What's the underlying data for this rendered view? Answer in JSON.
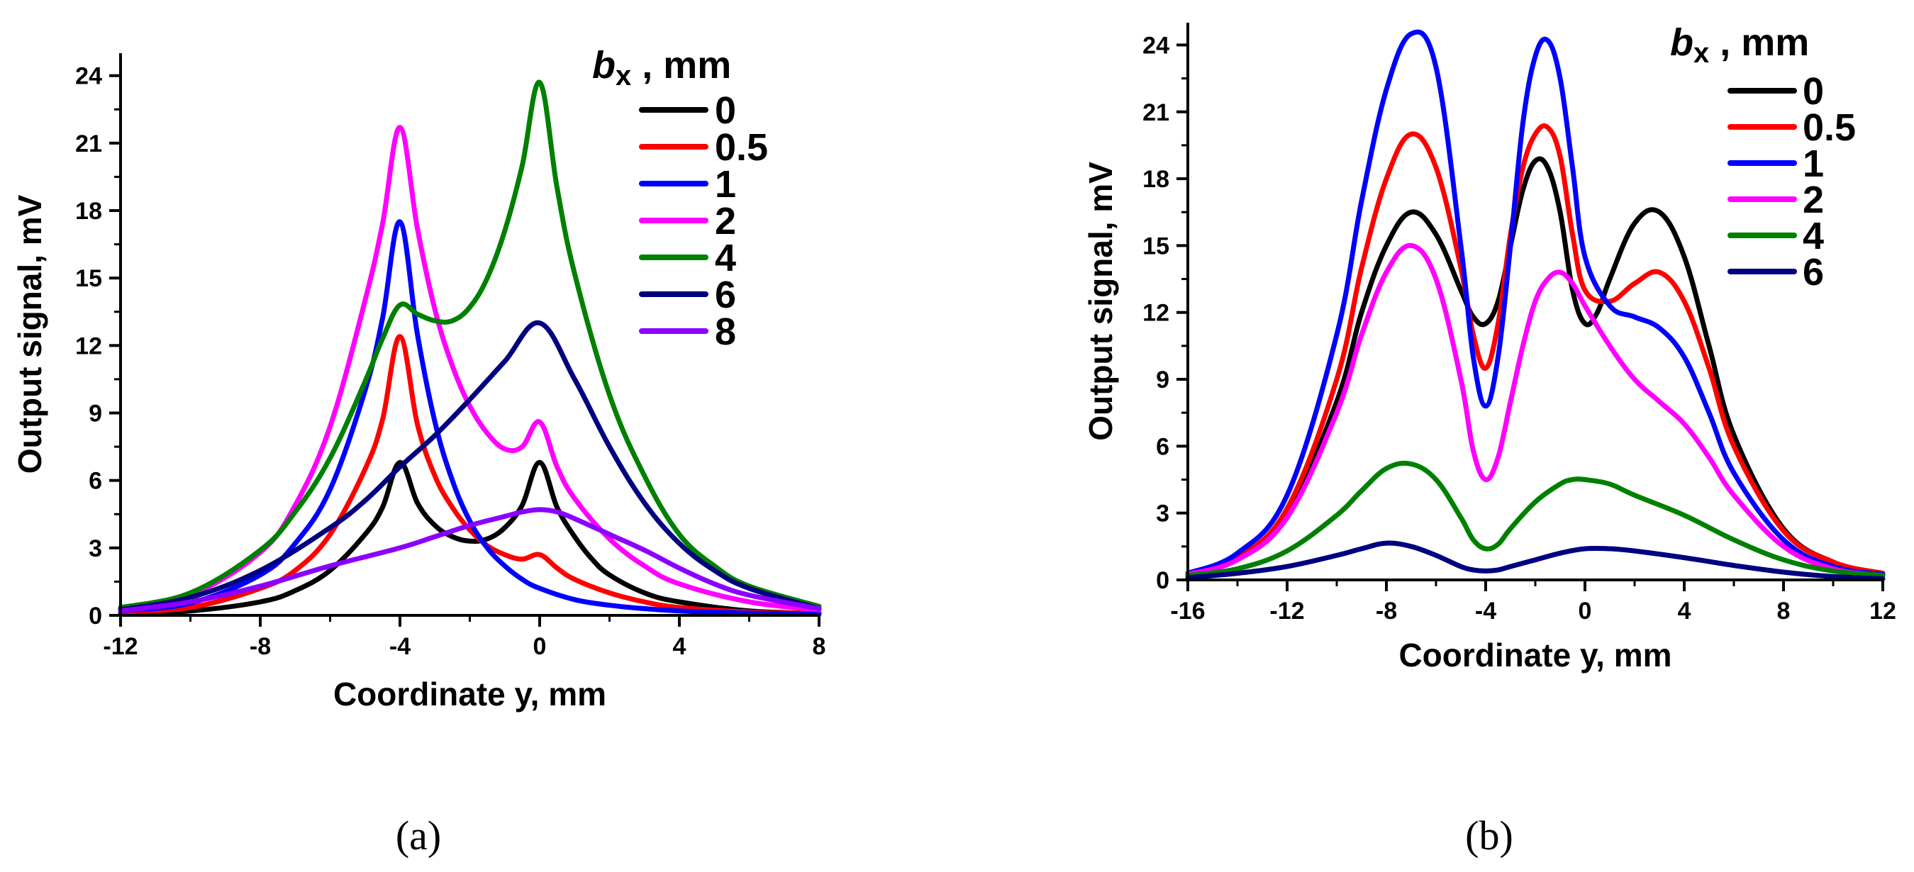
{
  "chart_data": [
    {
      "type": "line",
      "panel_label": "(a)",
      "xlabel": "Coordinate y, mm",
      "ylabel": "Output signal, mV",
      "xlim": [
        -12,
        8
      ],
      "ylim": [
        0,
        25
      ],
      "xticks": [
        -12,
        -8,
        -4,
        0,
        4,
        8
      ],
      "yticks": [
        0,
        3,
        6,
        9,
        12,
        15,
        18,
        21,
        24
      ],
      "legend_title_var": "b",
      "legend_title_sub": "x",
      "legend_title_unit": " , mm",
      "legend_position": "top-right",
      "series": [
        {
          "name": "0",
          "color": "#000000",
          "x": [
            -12,
            -10,
            -8,
            -7,
            -6,
            -5,
            -4.5,
            -4,
            -3.5,
            -3,
            -2.5,
            -2,
            -1.5,
            -1,
            -0.5,
            0,
            0.5,
            1,
            1.5,
            2,
            3,
            4,
            6,
            8
          ],
          "y": [
            0.1,
            0.2,
            0.6,
            1.1,
            2.0,
            3.6,
            4.8,
            6.8,
            5.0,
            4.0,
            3.5,
            3.3,
            3.4,
            3.9,
            4.9,
            6.8,
            4.8,
            3.5,
            2.5,
            1.8,
            1.0,
            0.6,
            0.2,
            0.1
          ]
        },
        {
          "name": "0.5",
          "color": "#ff0000",
          "x": [
            -12,
            -10,
            -8,
            -7,
            -6,
            -5,
            -4.5,
            -4,
            -3.5,
            -3,
            -2.5,
            -2,
            -1.5,
            -1,
            -0.5,
            0,
            0.5,
            1,
            2,
            3,
            4,
            6,
            8
          ],
          "y": [
            0.15,
            0.35,
            1.2,
            2.0,
            3.6,
            6.5,
            8.7,
            12.4,
            8.5,
            6.2,
            4.8,
            3.8,
            3.1,
            2.7,
            2.5,
            2.7,
            2.1,
            1.6,
            1.0,
            0.6,
            0.35,
            0.15,
            0.1
          ]
        },
        {
          "name": "1",
          "color": "#0000ff",
          "x": [
            -12,
            -10,
            -8,
            -7,
            -6,
            -5,
            -4.5,
            -4,
            -3.5,
            -3,
            -2.5,
            -2,
            -1.5,
            -1,
            -0.5,
            0,
            1,
            2,
            3,
            4,
            6,
            8
          ],
          "y": [
            0.2,
            0.55,
            1.8,
            3.2,
            5.6,
            10.0,
            13.2,
            17.5,
            12.5,
            8.6,
            6.0,
            4.2,
            3.0,
            2.2,
            1.6,
            1.2,
            0.7,
            0.45,
            0.3,
            0.2,
            0.1,
            0.05
          ]
        },
        {
          "name": "2",
          "color": "#ff00ff",
          "x": [
            -12,
            -10,
            -8,
            -7,
            -6,
            -5,
            -4.5,
            -4,
            -3.5,
            -3,
            -2.5,
            -2,
            -1.5,
            -1,
            -0.5,
            0,
            0.5,
            1,
            2,
            3,
            4,
            6,
            8
          ],
          "y": [
            0.3,
            0.9,
            2.8,
            4.9,
            8.4,
            14.0,
            17.4,
            21.7,
            17.2,
            13.6,
            11.1,
            9.3,
            8.1,
            7.4,
            7.5,
            8.6,
            6.6,
            5.2,
            3.4,
            2.2,
            1.4,
            0.6,
            0.25
          ]
        },
        {
          "name": "4",
          "color": "#008000",
          "x": [
            -12,
            -10,
            -8,
            -7,
            -6,
            -5,
            -4.5,
            -4,
            -3.5,
            -3,
            -2.5,
            -2,
            -1.5,
            -1,
            -0.5,
            0,
            0.5,
            1,
            2,
            3,
            4,
            5,
            6,
            8
          ],
          "y": [
            0.35,
            1.0,
            2.9,
            4.6,
            7.0,
            10.4,
            12.3,
            13.8,
            13.4,
            13.1,
            13.1,
            13.7,
            15.0,
            17.1,
            20.0,
            23.7,
            19.0,
            15.2,
            9.8,
            6.2,
            3.6,
            2.2,
            1.3,
            0.4
          ]
        },
        {
          "name": "6",
          "color": "#000080",
          "x": [
            -12,
            -10,
            -8,
            -6,
            -5,
            -4,
            -3,
            -2,
            -1,
            0,
            1,
            2,
            3,
            4,
            5,
            6,
            8
          ],
          "y": [
            0.25,
            0.8,
            2.0,
            3.9,
            5.1,
            6.6,
            8.0,
            9.6,
            11.3,
            13.0,
            10.5,
            7.5,
            5.0,
            3.2,
            2.0,
            1.2,
            0.3
          ]
        },
        {
          "name": "8",
          "color": "#8b00ff",
          "x": [
            -12,
            -10,
            -8,
            -6,
            -4,
            -3,
            -2,
            -1,
            -0.5,
            0,
            0.5,
            1,
            2,
            3,
            4,
            5,
            6,
            8
          ],
          "y": [
            0.2,
            0.6,
            1.3,
            2.2,
            3.0,
            3.5,
            4.0,
            4.4,
            4.6,
            4.7,
            4.6,
            4.3,
            3.6,
            2.9,
            2.1,
            1.4,
            0.9,
            0.3
          ]
        }
      ]
    },
    {
      "type": "line",
      "panel_label": "(b)",
      "xlabel": "Coordinate y, mm",
      "ylabel": "Output signal, mV",
      "xlim": [
        -16,
        12
      ],
      "ylim": [
        0,
        25
      ],
      "xticks": [
        -16,
        -12,
        -8,
        -4,
        0,
        4,
        8,
        12
      ],
      "yticks": [
        0,
        3,
        6,
        9,
        12,
        15,
        18,
        21,
        24
      ],
      "legend_title_var": "b",
      "legend_title_sub": "x",
      "legend_title_unit": " , mm",
      "legend_position": "top-right",
      "series": [
        {
          "name": "0",
          "color": "#000000",
          "x": [
            -16,
            -14,
            -12,
            -10,
            -9,
            -8,
            -7,
            -6,
            -5,
            -4.5,
            -4,
            -3.5,
            -3,
            -2.5,
            -2,
            -1.5,
            -1,
            -0.5,
            0,
            0.5,
            1,
            2,
            3,
            4,
            5,
            6,
            8,
            10,
            12
          ],
          "y": [
            0.3,
            1.0,
            3.0,
            8.0,
            12.0,
            15.0,
            16.5,
            15.5,
            13.0,
            11.8,
            11.5,
            12.5,
            15.0,
            17.5,
            18.8,
            18.5,
            16.5,
            13.0,
            11.5,
            12.0,
            13.5,
            16.0,
            16.5,
            14.5,
            10.5,
            6.5,
            2.3,
            0.8,
            0.3
          ]
        },
        {
          "name": "0.5",
          "color": "#ff0000",
          "x": [
            -16,
            -14,
            -12,
            -10,
            -9,
            -8,
            -7,
            -6,
            -5,
            -4.5,
            -4,
            -3.5,
            -3,
            -2.5,
            -2,
            -1.5,
            -1,
            -0.5,
            0,
            1,
            2,
            3,
            4,
            5,
            6,
            8,
            10,
            12
          ],
          "y": [
            0.3,
            1.0,
            3.2,
            9.0,
            14.0,
            18.0,
            20.0,
            18.5,
            14.0,
            11.0,
            9.5,
            11.5,
            15.5,
            18.5,
            20.0,
            20.3,
            19.0,
            15.5,
            13.0,
            12.5,
            13.3,
            13.8,
            12.5,
            9.5,
            6.0,
            2.2,
            0.8,
            0.3
          ]
        },
        {
          "name": "1",
          "color": "#0000ff",
          "x": [
            -16,
            -14,
            -12,
            -10,
            -9,
            -8,
            -7,
            -6,
            -5,
            -4.5,
            -4,
            -3.5,
            -3,
            -2.5,
            -2,
            -1.5,
            -1,
            -0.5,
            0,
            1,
            2,
            3,
            4,
            5,
            6,
            8,
            10,
            12
          ],
          "y": [
            0.3,
            1.2,
            3.8,
            11.0,
            17.0,
            22.0,
            24.5,
            23.0,
            15.0,
            10.0,
            7.8,
            10.0,
            15.0,
            20.5,
            23.5,
            24.2,
            22.5,
            18.5,
            14.5,
            12.3,
            11.8,
            11.3,
            10.0,
            7.5,
            4.8,
            1.8,
            0.6,
            0.25
          ]
        },
        {
          "name": "2",
          "color": "#ff00ff",
          "x": [
            -16,
            -14,
            -12,
            -10,
            -9,
            -8,
            -7,
            -6,
            -5,
            -4.5,
            -4,
            -3.5,
            -3,
            -2.5,
            -2,
            -1.5,
            -1,
            -0.5,
            0,
            1,
            2,
            3,
            4,
            5,
            6,
            8,
            10,
            12
          ],
          "y": [
            0.25,
            0.9,
            2.8,
            7.5,
            11.0,
            13.8,
            15.0,
            13.5,
            9.0,
            5.8,
            4.5,
            5.5,
            8.0,
            10.5,
            12.5,
            13.5,
            13.8,
            13.3,
            12.3,
            10.5,
            9.0,
            8.0,
            7.0,
            5.5,
            3.8,
            1.5,
            0.5,
            0.2
          ]
        },
        {
          "name": "4",
          "color": "#008000",
          "x": [
            -16,
            -14,
            -12,
            -10,
            -9,
            -8,
            -7,
            -6,
            -5,
            -4.5,
            -4,
            -3.5,
            -3,
            -2,
            -1,
            -0.5,
            0,
            1,
            2,
            4,
            6,
            8,
            10,
            12
          ],
          "y": [
            0.2,
            0.5,
            1.3,
            2.9,
            4.0,
            5.0,
            5.2,
            4.5,
            2.8,
            1.8,
            1.4,
            1.6,
            2.3,
            3.5,
            4.3,
            4.5,
            4.5,
            4.3,
            3.8,
            2.9,
            1.8,
            0.9,
            0.4,
            0.2
          ]
        },
        {
          "name": "6",
          "color": "#000080",
          "x": [
            -16,
            -14,
            -12,
            -10,
            -9,
            -8,
            -7,
            -6,
            -5,
            -4.5,
            -4,
            -3.5,
            -3,
            -2,
            -1,
            0,
            1,
            2,
            4,
            6,
            8,
            10,
            12
          ],
          "y": [
            0.1,
            0.3,
            0.6,
            1.1,
            1.4,
            1.65,
            1.5,
            1.1,
            0.6,
            0.45,
            0.4,
            0.45,
            0.6,
            0.9,
            1.2,
            1.4,
            1.4,
            1.3,
            1.0,
            0.65,
            0.35,
            0.15,
            0.05
          ]
        }
      ]
    }
  ]
}
